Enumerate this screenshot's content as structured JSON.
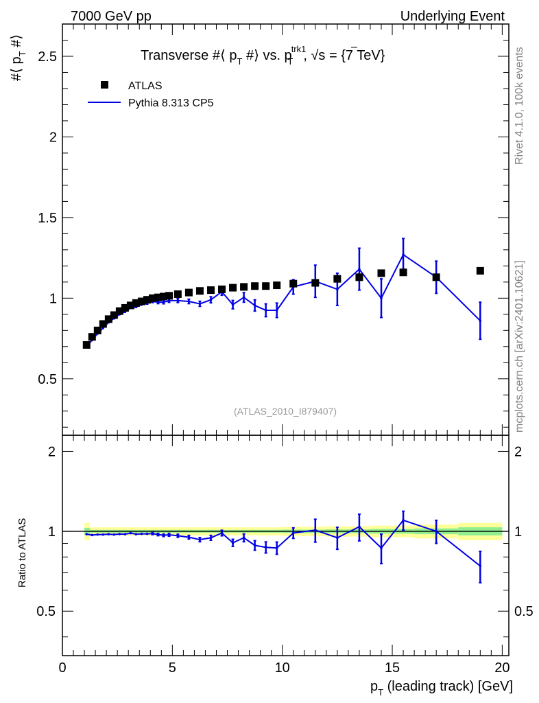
{
  "header": {
    "left": "7000 GeV pp",
    "right": "Underlying Event"
  },
  "side_text": {
    "rivet": "Rivet 4.1.0,  100k events",
    "source": "mcplots.cern.ch [arXiv:2401.10621]"
  },
  "chart_data": {
    "type": "scatter",
    "title": "Transverse #⟨ p_T #⟩ vs. p_T^trk1, √s = {7 TeV}",
    "title_parts": {
      "t1": "Transverse #⟨ p",
      "t2": " #⟩ vs. p",
      "t3": ", ",
      "t4": "s = {7 TeV}",
      "sub_t": "T",
      "sup": "trk1"
    },
    "analysis_label": "(ATLAS_2010_I879407)",
    "xlabel": "p_T (leading track) [GeV]",
    "xlabel_parts": {
      "p": "p",
      "sub": "T",
      "rest": " (leading track) [GeV]"
    },
    "ylabel": "#⟨ p_T #⟩",
    "ylabel_parts": {
      "a": "#⟨ p",
      "sub": "T",
      "b": " #⟩"
    },
    "ratio_ylabel": "Ratio to ATLAS",
    "xlim": [
      0,
      20.3
    ],
    "ylim": [
      0.15,
      2.7
    ],
    "ratio_ylim": [
      0.34,
      2.3
    ],
    "x_ticks": [
      "0",
      "5",
      "10",
      "15",
      "20"
    ],
    "y_ticks": [
      "0.5",
      "1",
      "1.5",
      "2",
      "2.5"
    ],
    "ratio_y_ticks": [
      "0.5",
      "1",
      "2"
    ],
    "series": [
      {
        "name": "ATLAS",
        "marker": "square",
        "color": "#000000",
        "x": [
          1.1,
          1.35,
          1.6,
          1.85,
          2.1,
          2.35,
          2.6,
          2.85,
          3.1,
          3.35,
          3.6,
          3.85,
          4.1,
          4.35,
          4.6,
          4.85,
          5.25,
          5.75,
          6.25,
          6.75,
          7.25,
          7.75,
          8.25,
          8.75,
          9.25,
          9.75,
          10.5,
          11.5,
          12.5,
          13.5,
          14.5,
          15.5,
          17.0,
          19.0
        ],
        "y": [
          0.71,
          0.76,
          0.8,
          0.84,
          0.87,
          0.895,
          0.92,
          0.94,
          0.955,
          0.97,
          0.98,
          0.99,
          1.0,
          1.005,
          1.01,
          1.015,
          1.025,
          1.035,
          1.045,
          1.05,
          1.055,
          1.065,
          1.07,
          1.075,
          1.075,
          1.08,
          1.09,
          1.095,
          1.12,
          1.13,
          1.155,
          1.16,
          1.13,
          1.17
        ]
      },
      {
        "name": "Pythia 8.313 CP5",
        "marker": "line",
        "color": "#0000e6",
        "x": [
          1.1,
          1.35,
          1.6,
          1.85,
          2.1,
          2.35,
          2.6,
          2.85,
          3.1,
          3.35,
          3.6,
          3.85,
          4.1,
          4.35,
          4.6,
          4.85,
          5.25,
          5.75,
          6.25,
          6.75,
          7.25,
          7.75,
          8.25,
          8.75,
          9.25,
          9.75,
          10.5,
          11.5,
          12.5,
          13.5,
          14.5,
          15.5,
          17.0,
          19.0
        ],
        "y": [
          0.7,
          0.74,
          0.78,
          0.815,
          0.85,
          0.875,
          0.9,
          0.915,
          0.94,
          0.945,
          0.96,
          0.97,
          0.98,
          0.975,
          0.975,
          0.985,
          0.985,
          0.98,
          0.965,
          0.99,
          1.04,
          0.96,
          1.005,
          0.955,
          0.925,
          0.925,
          1.07,
          1.105,
          1.055,
          1.18,
          1.0,
          1.27,
          1.13,
          0.86
        ],
        "yerr": [
          0.005,
          0.005,
          0.005,
          0.005,
          0.005,
          0.005,
          0.005,
          0.005,
          0.006,
          0.006,
          0.006,
          0.007,
          0.008,
          0.009,
          0.01,
          0.011,
          0.012,
          0.014,
          0.016,
          0.019,
          0.022,
          0.026,
          0.03,
          0.035,
          0.04,
          0.045,
          0.045,
          0.1,
          0.1,
          0.13,
          0.12,
          0.1,
          0.1,
          0.115
        ]
      }
    ],
    "ratio": {
      "reference": "ATLAS",
      "x": [
        1.1,
        1.35,
        1.6,
        1.85,
        2.1,
        2.35,
        2.6,
        2.85,
        3.1,
        3.35,
        3.6,
        3.85,
        4.1,
        4.35,
        4.6,
        4.85,
        5.25,
        5.75,
        6.25,
        6.75,
        7.25,
        7.75,
        8.25,
        8.75,
        9.25,
        9.75,
        10.5,
        11.5,
        12.5,
        13.5,
        14.5,
        15.5,
        17.0,
        19.0
      ],
      "y": [
        0.975,
        0.968,
        0.972,
        0.972,
        0.975,
        0.972,
        0.976,
        0.975,
        0.984,
        0.975,
        0.978,
        0.978,
        0.98,
        0.972,
        0.966,
        0.97,
        0.962,
        0.95,
        0.93,
        0.945,
        0.985,
        0.905,
        0.945,
        0.885,
        0.87,
        0.865,
        0.985,
        1.01,
        0.945,
        1.04,
        0.865,
        1.1,
        1.0,
        0.74
      ],
      "yerr": [
        0.006,
        0.006,
        0.006,
        0.006,
        0.006,
        0.006,
        0.006,
        0.006,
        0.007,
        0.007,
        0.007,
        0.008,
        0.009,
        0.01,
        0.011,
        0.012,
        0.013,
        0.015,
        0.017,
        0.02,
        0.024,
        0.028,
        0.032,
        0.037,
        0.042,
        0.046,
        0.045,
        0.1,
        0.09,
        0.12,
        0.11,
        0.09,
        0.1,
        0.1
      ],
      "band_edges": [
        1.0,
        1.25,
        10.0,
        12.0,
        14.0,
        16.0,
        18.0,
        20.0
      ],
      "stat_band": [
        0.03,
        0.012,
        0.014,
        0.016,
        0.02,
        0.025,
        0.035,
        0.04
      ],
      "total_band": [
        0.075,
        0.035,
        0.04,
        0.045,
        0.05,
        0.06,
        0.075,
        0.08
      ]
    },
    "legend": [
      "ATLAS",
      "Pythia 8.313 CP5"
    ],
    "legend_position": "top-left",
    "colors": {
      "data": "#000000",
      "mc": "#0000e6",
      "stat_band": "#90ee90",
      "total_band": "#ffff99",
      "grey_text": "#999999",
      "side_text": "#808080"
    }
  }
}
